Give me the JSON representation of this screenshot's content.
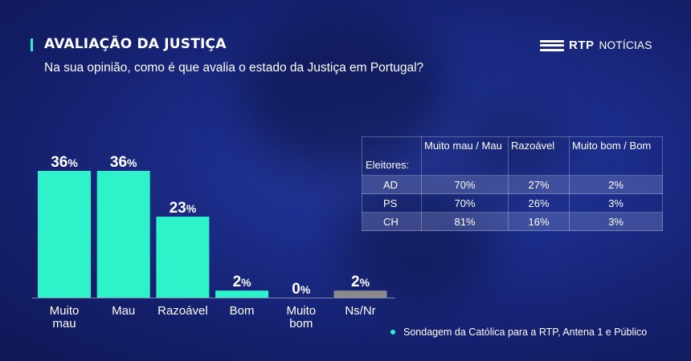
{
  "header": {
    "title": "AVALIAÇÃO DA JUSTIÇA",
    "subtitle": "Na sua opinião, como é que avalia o estado da Justiça em Portugal?"
  },
  "logo": {
    "brand": "RTP",
    "section": "NOTÍCIAS"
  },
  "chart_data": {
    "type": "bar",
    "categories": [
      [
        "Muito",
        "mau"
      ],
      [
        "Mau"
      ],
      [
        "Razoável"
      ],
      [
        "Bom"
      ],
      [
        "Muito",
        "bom"
      ],
      [
        "Ns/Nr"
      ]
    ],
    "values": [
      36,
      36,
      23,
      2,
      0,
      2
    ],
    "value_labels": [
      "36%",
      "36%",
      "23%",
      "2%",
      "0%",
      "2%"
    ],
    "colors": [
      "#2ef2c9",
      "#2ef2c9",
      "#2ef2c9",
      "#2ef2c9",
      "#2ef2c9",
      "#8a8a8a"
    ],
    "ylim": [
      0,
      36
    ]
  },
  "table": {
    "corner": "Eleitores:",
    "headers": [
      "Muito mau / Mau",
      "Razoável",
      "Muito bom / Bom"
    ],
    "rows": [
      {
        "label": "AD",
        "values": [
          "70%",
          "27%",
          "2%"
        ]
      },
      {
        "label": "PS",
        "values": [
          "70%",
          "26%",
          "3%"
        ]
      },
      {
        "label": "CH",
        "values": [
          "81%",
          "16%",
          "3%"
        ]
      }
    ]
  },
  "source": "Sondagem da Católica para a RTP, Antena 1 e Público",
  "colors": {
    "accent": "#2ef2c9",
    "neutral": "#8a8a8a",
    "background": "#1c2d8a"
  }
}
